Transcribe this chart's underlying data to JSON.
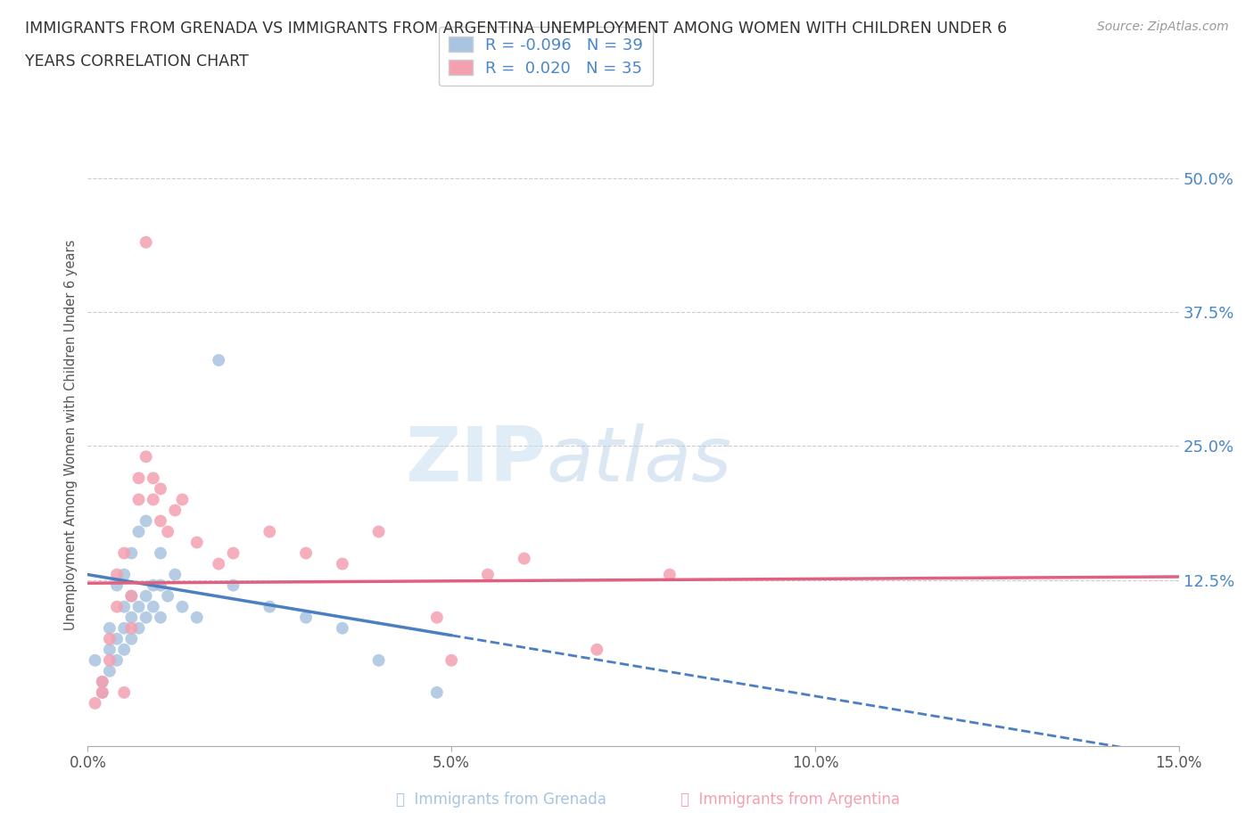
{
  "title_line1": "IMMIGRANTS FROM GRENADA VS IMMIGRANTS FROM ARGENTINA UNEMPLOYMENT AMONG WOMEN WITH CHILDREN UNDER 6",
  "title_line2": "YEARS CORRELATION CHART",
  "source": "Source: ZipAtlas.com",
  "ylabel": "Unemployment Among Women with Children Under 6 years",
  "xlim": [
    0.0,
    0.15
  ],
  "ylim": [
    -0.03,
    0.55
  ],
  "yticks": [
    0.0,
    0.125,
    0.25,
    0.375,
    0.5
  ],
  "ytick_labels": [
    "",
    "12.5%",
    "25.0%",
    "37.5%",
    "50.0%"
  ],
  "xticks": [
    0.0,
    0.05,
    0.1,
    0.15
  ],
  "xtick_labels": [
    "0.0%",
    "5.0%",
    "10.0%",
    "15.0%"
  ],
  "grenada_color": "#a8c4e0",
  "argentina_color": "#f4a0b0",
  "grenada_line_color": "#4a7fc0",
  "argentina_line_color": "#e06080",
  "grenada_R": -0.096,
  "grenada_N": 39,
  "argentina_R": 0.02,
  "argentina_N": 35,
  "grenada_x": [
    0.001,
    0.002,
    0.002,
    0.003,
    0.003,
    0.003,
    0.004,
    0.004,
    0.004,
    0.005,
    0.005,
    0.005,
    0.005,
    0.006,
    0.006,
    0.006,
    0.006,
    0.007,
    0.007,
    0.007,
    0.008,
    0.008,
    0.008,
    0.009,
    0.009,
    0.01,
    0.01,
    0.01,
    0.011,
    0.012,
    0.013,
    0.015,
    0.018,
    0.02,
    0.025,
    0.03,
    0.035,
    0.04,
    0.048
  ],
  "grenada_y": [
    0.05,
    0.03,
    0.02,
    0.04,
    0.06,
    0.08,
    0.05,
    0.07,
    0.12,
    0.06,
    0.08,
    0.1,
    0.13,
    0.07,
    0.09,
    0.11,
    0.15,
    0.08,
    0.1,
    0.17,
    0.09,
    0.11,
    0.18,
    0.1,
    0.12,
    0.09,
    0.12,
    0.15,
    0.11,
    0.13,
    0.1,
    0.09,
    0.33,
    0.12,
    0.1,
    0.09,
    0.08,
    0.05,
    0.02
  ],
  "argentina_x": [
    0.001,
    0.002,
    0.002,
    0.003,
    0.003,
    0.004,
    0.004,
    0.005,
    0.005,
    0.006,
    0.006,
    0.007,
    0.007,
    0.008,
    0.008,
    0.009,
    0.009,
    0.01,
    0.01,
    0.011,
    0.012,
    0.013,
    0.015,
    0.018,
    0.02,
    0.025,
    0.03,
    0.035,
    0.04,
    0.05,
    0.055,
    0.06,
    0.08,
    0.07,
    0.048
  ],
  "argentina_y": [
    0.01,
    0.02,
    0.03,
    0.05,
    0.07,
    0.1,
    0.13,
    0.15,
    0.02,
    0.08,
    0.11,
    0.2,
    0.22,
    0.24,
    0.44,
    0.2,
    0.22,
    0.18,
    0.21,
    0.17,
    0.19,
    0.2,
    0.16,
    0.14,
    0.15,
    0.17,
    0.15,
    0.14,
    0.17,
    0.05,
    0.13,
    0.145,
    0.13,
    0.06,
    0.09
  ],
  "watermark_zip": "ZIP",
  "watermark_atlas": "atlas",
  "background_color": "#ffffff",
  "grid_color": "#cccccc",
  "axis_color": "#4a86c8",
  "title_color": "#333333"
}
